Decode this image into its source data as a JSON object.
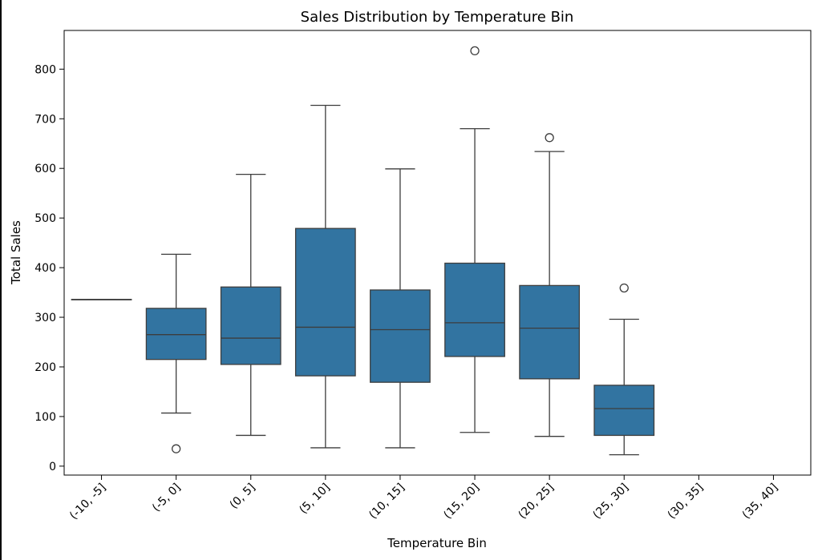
{
  "chart_data": {
    "type": "box",
    "title": "Sales Distribution by Temperature Bin",
    "xlabel": "Temperature Bin",
    "ylabel": "Total Sales",
    "ylim": [
      -18,
      878
    ],
    "yticks": [
      0,
      100,
      200,
      300,
      400,
      500,
      600,
      700,
      800
    ],
    "grid": false,
    "color": "#3274a1",
    "categories": [
      "(-10, -5]",
      "(-5, 0]",
      "(0, 5]",
      "(5, 10]",
      "(10, 15]",
      "(15, 20]",
      "(20, 25]",
      "(25, 30]",
      "(30, 35]",
      "(35, 40]"
    ],
    "boxes": [
      {
        "category": "(-10, -5]",
        "min": 336,
        "q1": 336,
        "median": 336,
        "q3": 336,
        "max": 336,
        "outliers": []
      },
      {
        "category": "(-5, 0]",
        "min": 107,
        "q1": 215,
        "median": 265,
        "q3": 318,
        "max": 427,
        "outliers": [
          35
        ]
      },
      {
        "category": "(0, 5]",
        "min": 62,
        "q1": 205,
        "median": 258,
        "q3": 361,
        "max": 588,
        "outliers": []
      },
      {
        "category": "(5, 10]",
        "min": 37,
        "q1": 182,
        "median": 280,
        "q3": 479,
        "max": 727,
        "outliers": []
      },
      {
        "category": "(10, 15]",
        "min": 37,
        "q1": 169,
        "median": 275,
        "q3": 355,
        "max": 599,
        "outliers": []
      },
      {
        "category": "(15, 20]",
        "min": 68,
        "q1": 221,
        "median": 289,
        "q3": 409,
        "max": 680,
        "outliers": [
          837
        ]
      },
      {
        "category": "(20, 25]",
        "min": 60,
        "q1": 176,
        "median": 278,
        "q3": 364,
        "max": 634,
        "outliers": [
          662
        ]
      },
      {
        "category": "(25, 30]",
        "min": 23,
        "q1": 62,
        "median": 116,
        "q3": 163,
        "max": 296,
        "outliers": [
          359
        ]
      },
      {
        "category": "(30, 35]",
        "empty": true
      },
      {
        "category": "(35, 40]",
        "empty": true
      }
    ]
  }
}
